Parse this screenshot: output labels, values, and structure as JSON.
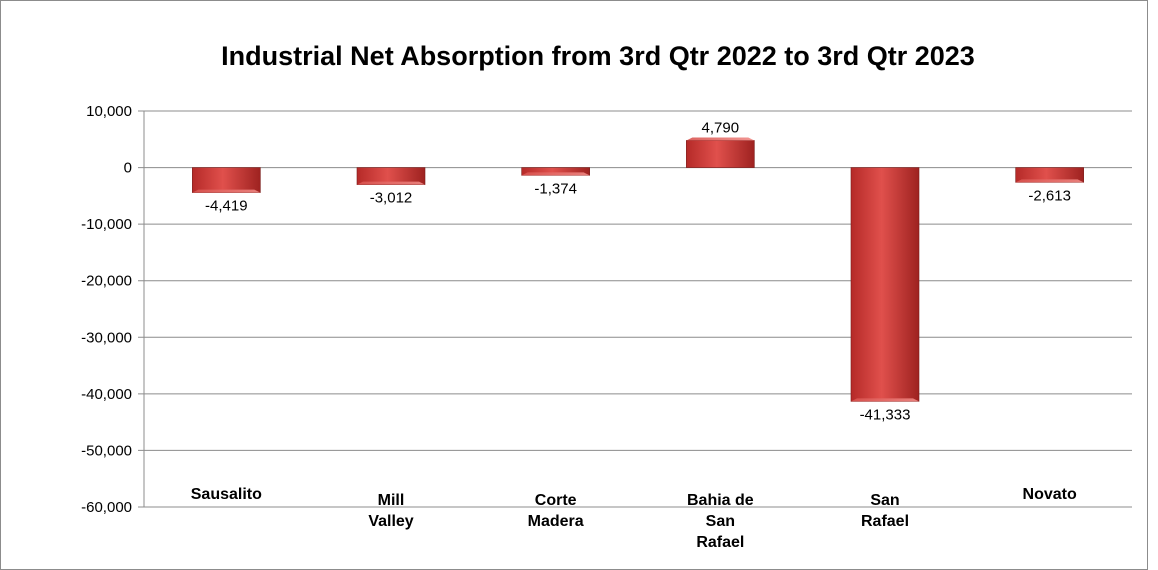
{
  "chart_data": {
    "type": "bar",
    "title": "Industrial Net Absorption  from 3rd Qtr 2022 to 3rd Qtr 2023",
    "categories": [
      "Sausalito",
      "Mill Valley",
      "Corte Madera",
      "Bahia de San Rafael",
      "San Rafael",
      "Novato"
    ],
    "category_lines": [
      [
        "Sausalito"
      ],
      [
        "Mill",
        "Valley"
      ],
      [
        "Corte",
        "Madera"
      ],
      [
        "Bahia de",
        "San",
        "Rafael"
      ],
      [
        "San",
        "Rafael"
      ],
      [
        "Novato"
      ]
    ],
    "values": [
      -4419,
      -3012,
      -1374,
      4790,
      -41333,
      -2613
    ],
    "data_labels": [
      "-4,419",
      "-3,012",
      "-1,374",
      "4,790",
      "-41,333",
      "-2,613"
    ],
    "ylim": [
      -60000,
      10000
    ],
    "yticks": [
      10000,
      0,
      -10000,
      -20000,
      -30000,
      -40000,
      -50000,
      -60000
    ],
    "ytick_labels": [
      "10,000",
      "0",
      "-10,000",
      "-20,000",
      "-30,000",
      "-40,000",
      "-50,000",
      "-60,000"
    ],
    "xlabel": "",
    "ylabel": "",
    "grid": true,
    "legend": "none",
    "colors": {
      "bar": "#c0312f",
      "bar_light": "#e85a55",
      "grid": "#8c8c8c"
    }
  }
}
